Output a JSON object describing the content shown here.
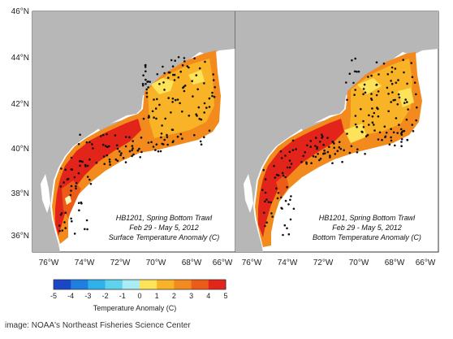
{
  "lat_ticks": [
    "46°N",
    "44°N",
    "42°N",
    "40°N",
    "38°N",
    "36°N"
  ],
  "lon_ticks_left": [
    "76°W",
    "74°W",
    "72°W",
    "70°W",
    "68°W",
    "66°W"
  ],
  "lon_ticks_right": [
    "76°W",
    "74°W",
    "72°W",
    "70°W",
    "68°W",
    "66°W"
  ],
  "panels": [
    {
      "line1": "HB1201, Spring Bottom Trawl",
      "line2": "Feb 29 - May 5, 2012",
      "line3": "Surface Temperature Anomaly (C)"
    },
    {
      "line1": "HB1201, Spring Bottom Trawl",
      "line2": "Feb 29 - May 5, 2012",
      "line3": "Bottom Temperature Anomaly (C)"
    }
  ],
  "colorbar": {
    "title": "Temperature Anomaly (C)",
    "labels": [
      "-5",
      "-4",
      "-3",
      "-2",
      "-1",
      "0",
      "1",
      "2",
      "3",
      "4",
      "5"
    ],
    "colors": [
      "#1a47c6",
      "#1f7fe0",
      "#2fb2ec",
      "#5fd3ee",
      "#a9ecf4",
      "#fbf7b9",
      "#fde35a",
      "#f9b326",
      "#f28a1d",
      "#ec5b17",
      "#e2241b"
    ]
  },
  "credit": "image: NOAA's Northeast Fisheries Science Center",
  "colors": {
    "land": "#b7b7b7",
    "ocean": "#ffffff",
    "station": "#111111"
  }
}
